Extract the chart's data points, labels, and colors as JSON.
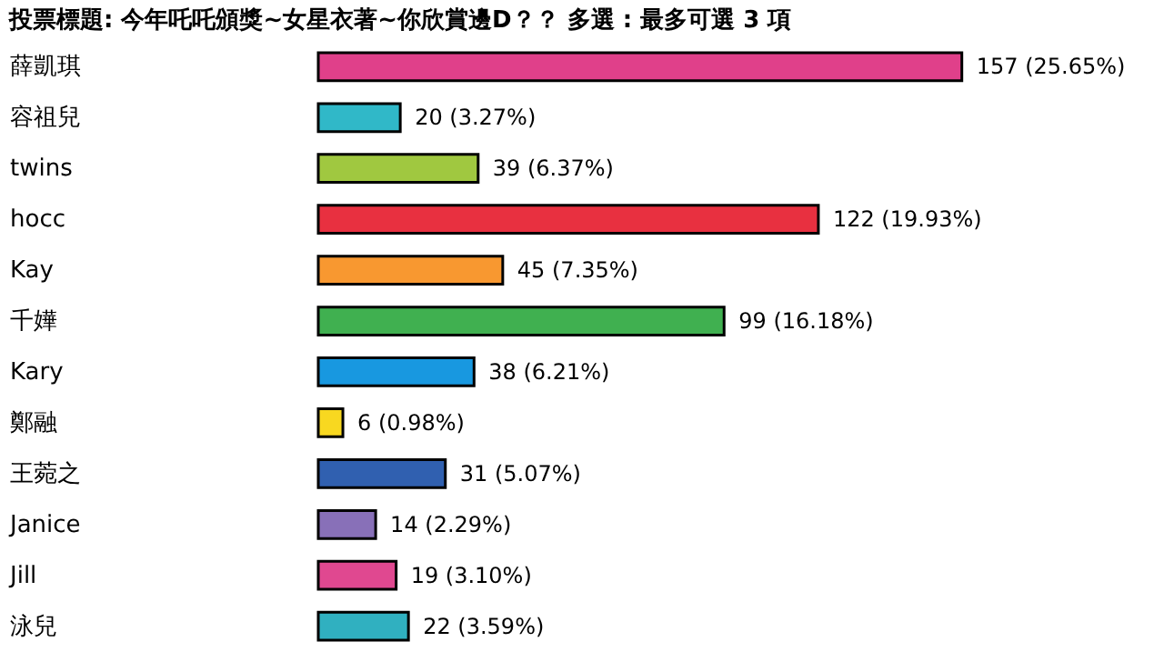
{
  "chart_data": {
    "type": "bar",
    "orientation": "horizontal",
    "title": "投票標題: 今年吒吒頒獎~女星衣著~你欣賞邊D？？  多選 : 最多可選 3 項",
    "categories": [
      "薛凱琪",
      "容祖兒",
      "twins",
      "hocc",
      "Kay",
      "千嬅",
      "Kary",
      "鄭融",
      "王菀之",
      "Janice",
      "Jill",
      "泳兒"
    ],
    "values": [
      157,
      20,
      39,
      122,
      45,
      99,
      38,
      6,
      31,
      14,
      19,
      22
    ],
    "colors": [
      "#e0408a",
      "#30b8c8",
      "#a0c840",
      "#e83040",
      "#f89830",
      "#40b050",
      "#1898e0",
      "#f8d820",
      "#3060b0",
      "#8870b8",
      "#e04890",
      "#30b0c0"
    ],
    "value_labels": [
      "157 (25.65%)",
      "20 (3.27%)",
      "39 (6.37%)",
      "122 (19.93%)",
      "45 (7.35%)",
      "99 (16.18%)",
      "38 (6.21%)",
      "6 (0.98%)",
      "31 (5.07%)",
      "14 (2.29%)",
      "19 (3.10%)",
      "22 (3.59%)"
    ]
  }
}
